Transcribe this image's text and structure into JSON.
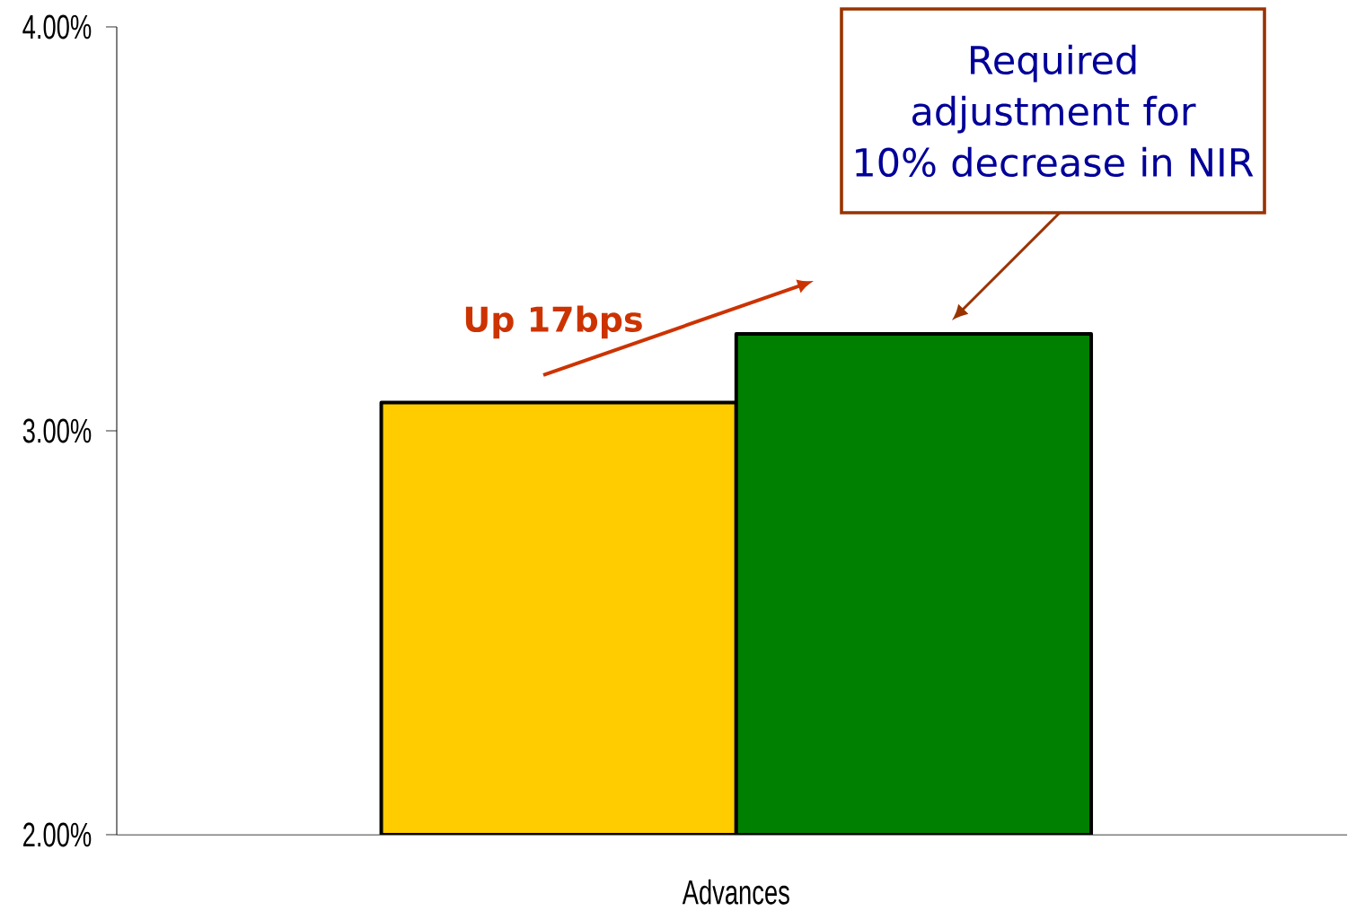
{
  "chart_data": {
    "type": "bar",
    "categories": [
      "Advances"
    ],
    "series": [
      {
        "color": "#ffcc00",
        "values": [
          3.07
        ]
      },
      {
        "color": "#008000",
        "values": [
          3.24
        ]
      }
    ],
    "ylim": [
      2,
      4
    ],
    "yticks": [
      {
        "value": 2,
        "label": "2.00%"
      },
      {
        "value": 3,
        "label": "3.00%"
      },
      {
        "value": 4,
        "label": "4.00%"
      }
    ],
    "annotations": [
      "Up 17bps",
      "Required adjustment for 10% decrease in NIR"
    ]
  }
}
